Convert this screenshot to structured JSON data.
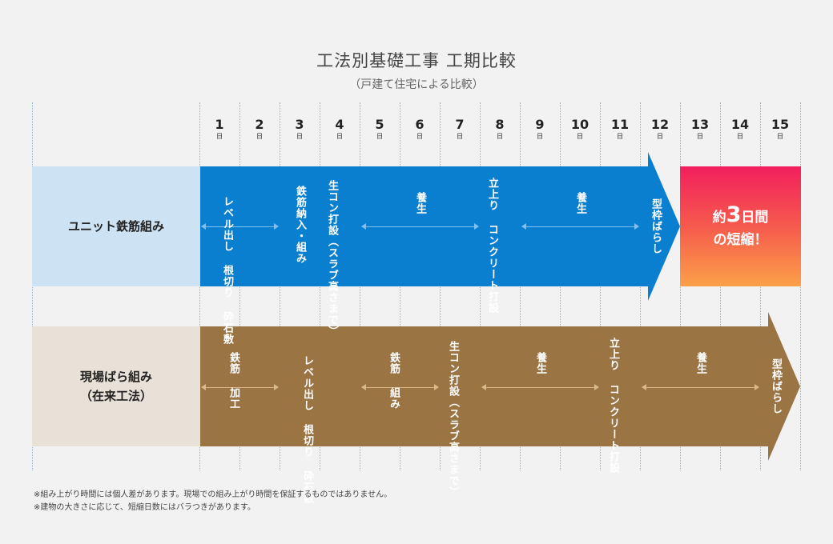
{
  "title": "工法別基礎工事 工期比較",
  "subtitle": "（戸建て住宅による比較）",
  "days": [
    "1",
    "2",
    "3",
    "4",
    "5",
    "6",
    "7",
    "8",
    "9",
    "10",
    "11",
    "12",
    "13",
    "14",
    "15"
  ],
  "day_unit": "日",
  "rows": [
    {
      "label": "ユニット鉄筋組み",
      "label2": "",
      "tasks": [
        "レベル出し 根切り 砕石敷",
        "鉄筋納入・組み",
        "生コン打設（スラブ高さまで）",
        "養生",
        "立上り コンクリート打設",
        "養生",
        "型枠ばらし"
      ]
    },
    {
      "label": "現場ばら組み",
      "label2": "（在来工法）",
      "tasks": [
        "鉄筋 加工",
        "レベル出し 根切り 砕石敷",
        "鉄筋 組み",
        "生コン打設（スラブ高さまで）",
        "養生",
        "立上り コンクリート打設",
        "養生",
        "型枠ばらし"
      ]
    }
  ],
  "shorten": {
    "prefix": "約",
    "number": "3",
    "suffix": "日間",
    "line2": "の短縮！"
  },
  "notes": [
    "※組み上がり時間には個人差があります。現場での組み上がり時間を保証するものではありません。",
    "※建物の大きさに応じて、短縮日数にはバラつきがあります。"
  ],
  "colors": {
    "unit_bar": "#0a7fd0",
    "conventional_bar": "#9b7444",
    "unit_label_bg": "#cde3f3",
    "conventional_label_bg": "#e8e1d7"
  }
}
